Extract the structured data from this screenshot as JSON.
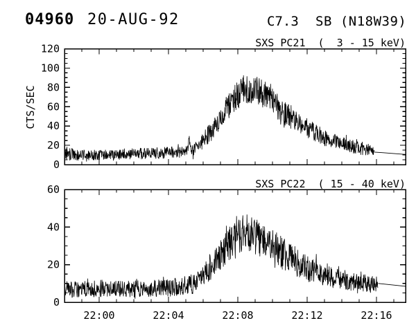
{
  "header": {
    "flare_number": "04960",
    "date": "20-AUG-92",
    "goes_class": "C7.3",
    "flare_type_location": "SB (N18W39)"
  },
  "colors": {
    "foreground": "#000000",
    "background": "#ffffff"
  },
  "time_axis": {
    "start": "21:58:00",
    "minutes_span": 19.68,
    "major_ticks": [
      {
        "t": 2,
        "label": "22:00"
      },
      {
        "t": 6,
        "label": "22:04"
      },
      {
        "t": 10,
        "label": "22:08"
      },
      {
        "t": 14,
        "label": "22:12"
      },
      {
        "t": 18,
        "label": "22:16"
      }
    ],
    "minor_tick_minutes": 1
  },
  "noise": {
    "seed": 920842,
    "samples_per_minute": 55,
    "spike_probability": 0.08,
    "spike_factor_max": 1.6
  },
  "chart_data": [
    {
      "type": "line",
      "detector": "SXS PC21",
      "energy_band": "3 - 15 keV",
      "title": "SXS PC21  (  3 - 15 keV)",
      "ylabel": "CTS/SEC",
      "ylim": [
        0,
        120
      ],
      "yticks": [
        0,
        20,
        40,
        60,
        80,
        100,
        120
      ],
      "ytick_major": 20,
      "ytick_minor": 5,
      "show_x_labels": false,
      "grid": false,
      "series": {
        "name": "PC21 counts/sec",
        "envelope_t_mean_amp": [
          [
            0.0,
            10,
            6
          ],
          [
            0.1,
            12,
            8
          ],
          [
            0.5,
            10,
            6
          ],
          [
            1,
            10,
            5.5
          ],
          [
            2,
            10,
            5.5
          ],
          [
            3,
            10.5,
            5.5
          ],
          [
            4,
            11,
            6
          ],
          [
            5,
            12,
            6
          ],
          [
            5.5,
            12,
            6
          ],
          [
            6,
            12.5,
            6
          ],
          [
            6.5,
            13,
            6
          ],
          [
            7,
            13.5,
            6.5
          ],
          [
            7.1,
            14,
            6
          ],
          [
            7.18,
            29,
            3
          ],
          [
            7.3,
            14,
            6.5
          ],
          [
            7.6,
            17,
            7
          ],
          [
            8,
            25,
            9
          ],
          [
            8.5,
            35,
            10
          ],
          [
            9,
            48,
            12
          ],
          [
            9.5,
            62,
            14
          ],
          [
            10,
            72,
            15
          ],
          [
            10.4,
            77,
            16
          ],
          [
            10.8,
            77,
            16
          ],
          [
            11.2,
            75,
            15
          ],
          [
            11.6,
            72,
            15
          ],
          [
            12,
            65,
            14
          ],
          [
            12.5,
            56,
            13
          ],
          [
            13,
            49,
            12
          ],
          [
            13.5,
            43,
            11
          ],
          [
            14,
            38,
            10
          ],
          [
            14.5,
            33,
            10
          ],
          [
            15,
            28,
            9
          ],
          [
            15.5,
            25,
            8
          ],
          [
            16,
            22,
            8
          ],
          [
            16.5,
            19,
            7
          ],
          [
            17,
            17,
            7
          ],
          [
            17.5,
            15,
            6
          ],
          [
            17.88,
            14,
            5
          ]
        ],
        "smooth_tail_t_value": [
          [
            17.88,
            13
          ],
          [
            18.4,
            12.3
          ],
          [
            19.68,
            10.5
          ]
        ]
      }
    },
    {
      "type": "line",
      "detector": "SXS PC22",
      "energy_band": "15 - 40 keV",
      "title": "SXS PC22  ( 15 - 40 keV)",
      "ylabel": "",
      "ylim": [
        0,
        60
      ],
      "yticks": [
        0,
        20,
        40,
        60
      ],
      "ytick_major": 20,
      "ytick_minor": 5,
      "show_x_labels": true,
      "grid": false,
      "series": {
        "name": "PC22 counts/sec",
        "envelope_t_mean_amp": [
          [
            0,
            7,
            4.5
          ],
          [
            2,
            7,
            4.5
          ],
          [
            4,
            7,
            4.5
          ],
          [
            5,
            7.5,
            4.5
          ],
          [
            6,
            8,
            5
          ],
          [
            6.5,
            8,
            5
          ],
          [
            7,
            9,
            5
          ],
          [
            7.5,
            10,
            5.5
          ],
          [
            8,
            14,
            6
          ],
          [
            8.5,
            19,
            7
          ],
          [
            9,
            25,
            8
          ],
          [
            9.5,
            31,
            9
          ],
          [
            10,
            35,
            10
          ],
          [
            10.4,
            37,
            10.5
          ],
          [
            10.8,
            36,
            10
          ],
          [
            11.2,
            34,
            9.5
          ],
          [
            11.6,
            32,
            9
          ],
          [
            12,
            30,
            9
          ],
          [
            12.5,
            27,
            8.5
          ],
          [
            13,
            24,
            8
          ],
          [
            13.5,
            21,
            7.5
          ],
          [
            14,
            18,
            7
          ],
          [
            14.5,
            16,
            6.5
          ],
          [
            15,
            14,
            6
          ],
          [
            15.5,
            13,
            5.5
          ],
          [
            16,
            12,
            5
          ],
          [
            16.5,
            11,
            5
          ],
          [
            17,
            10.5,
            4.5
          ],
          [
            17.5,
            10,
            4.5
          ],
          [
            18.1,
            9.5,
            4
          ]
        ],
        "smooth_tail_t_value": [
          [
            18.1,
            10
          ],
          [
            19.68,
            8.5
          ]
        ]
      }
    }
  ]
}
